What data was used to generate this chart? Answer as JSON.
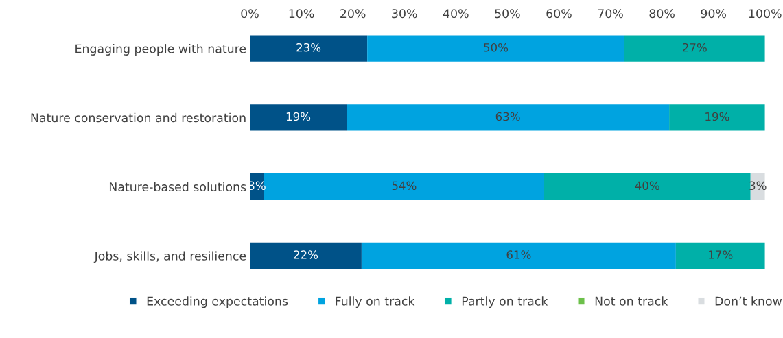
{
  "chart_data": {
    "type": "bar",
    "orientation": "horizontal",
    "stacked": true,
    "categories": [
      "Engaging people with nature",
      "Nature conservation and restoration",
      "Nature-based solutions",
      "Jobs, skills, and resilience"
    ],
    "series": [
      {
        "name": "Exceeding expectations",
        "color": "#005288",
        "values": [
          22.8,
          18.8,
          2.8,
          21.7
        ],
        "value_labels": [
          "23%",
          "19%",
          "3%",
          "22%"
        ]
      },
      {
        "name": "Fully on track",
        "color": "#00a3e0",
        "values": [
          49.9,
          62.6,
          54.3,
          61.0
        ],
        "value_labels": [
          "50%",
          "63%",
          "54%",
          "61%"
        ]
      },
      {
        "name": "Partly on track",
        "color": "#00b0a8",
        "values": [
          27.3,
          18.6,
          40.1,
          17.3
        ],
        "value_labels": [
          "27%",
          "19%",
          "40%",
          "17%"
        ]
      },
      {
        "name": "Not on track",
        "color": "#6cc04a",
        "values": [
          0,
          0,
          0,
          0
        ],
        "value_labels": [
          null,
          null,
          null,
          null
        ]
      },
      {
        "name": "Don’t know",
        "color": "#d9dde0",
        "values": [
          0,
          0,
          2.8,
          0
        ],
        "value_labels": [
          null,
          null,
          "3%",
          null
        ]
      }
    ],
    "xlim": [
      0,
      100
    ],
    "xticks": [
      {
        "value": 0,
        "label": "0%"
      },
      {
        "value": 10,
        "label": "10%"
      },
      {
        "value": 20,
        "label": "20%"
      },
      {
        "value": 30,
        "label": "30%"
      },
      {
        "value": 40,
        "label": "40%"
      },
      {
        "value": 50,
        "label": "50%"
      },
      {
        "value": 60,
        "label": "60%"
      },
      {
        "value": 70,
        "label": "70%"
      },
      {
        "value": 80,
        "label": "80%"
      },
      {
        "value": 90,
        "label": "90%"
      },
      {
        "value": 100,
        "label": "100%"
      }
    ],
    "legend": "bottom",
    "grid": false
  }
}
